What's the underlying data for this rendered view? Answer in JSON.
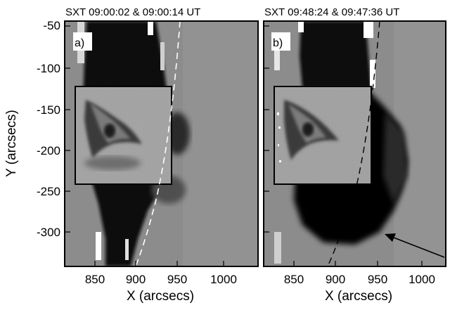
{
  "panels": [
    {
      "id": "a",
      "title": "SXT  09:00:02 & 09:00:14 UT",
      "letter": "a)",
      "limb_style": "white-dashed"
    },
    {
      "id": "b",
      "title": "SXT  09:48:24 & 09:47:36 UT",
      "letter": "b)",
      "limb_style": "black-dashed",
      "has_arrow": true
    }
  ],
  "axes": {
    "y_label": "Y (arcsecs)",
    "x_label": "X (arcsecs)",
    "y_ticks": [
      "-50",
      "-100",
      "-150",
      "-200",
      "-250",
      "-300"
    ],
    "x_ticks": [
      "850",
      "900",
      "950",
      "1000"
    ]
  },
  "colors": {
    "background_gray": "#8a8a8a",
    "dark_region": "#0a0a0a",
    "inset_gray": "#9a9a9a",
    "frame": "#000000"
  }
}
